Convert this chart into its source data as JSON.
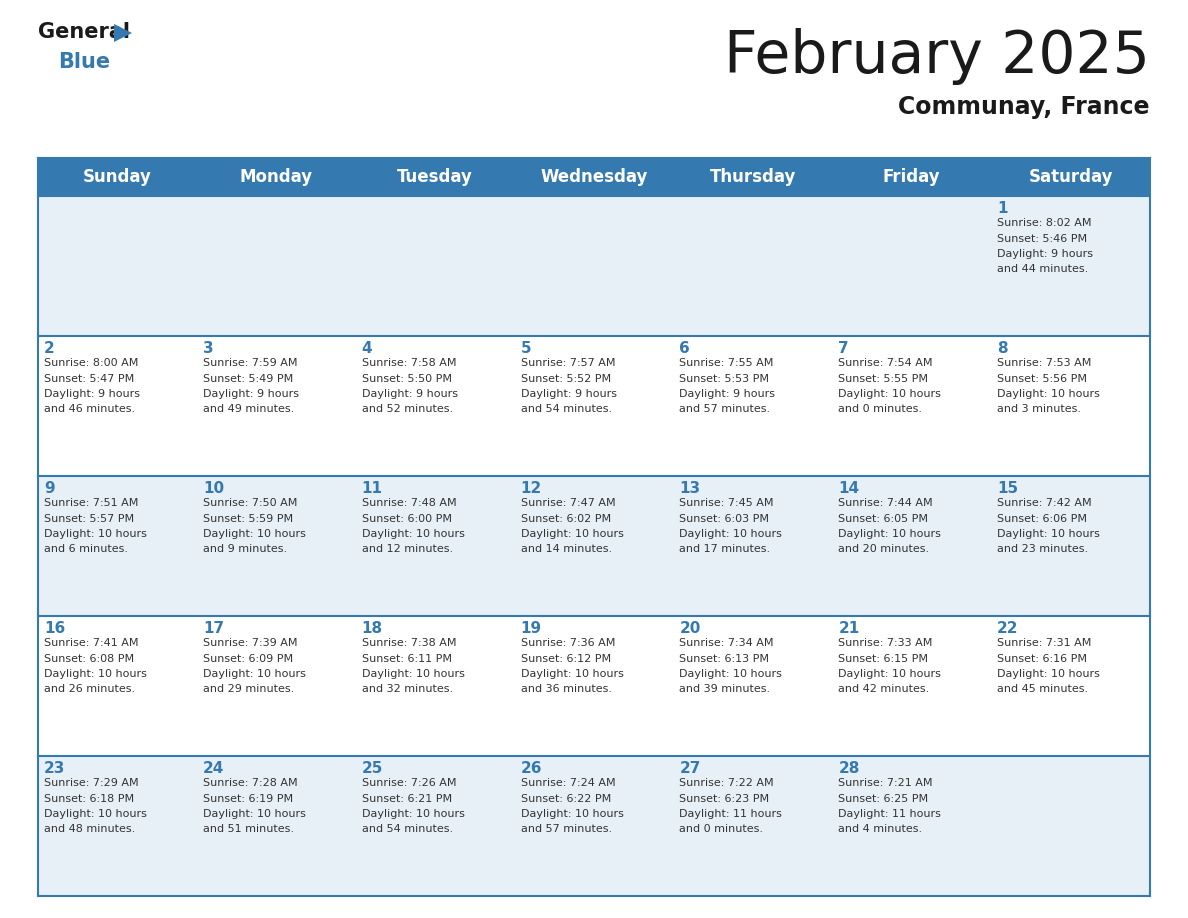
{
  "title": "February 2025",
  "subtitle": "Communay, France",
  "header_color": "#3479b0",
  "header_text_color": "#ffffff",
  "background_color": "#ffffff",
  "cell_bg_light": "#e8f0f7",
  "cell_bg_white": "#ffffff",
  "days_of_week": [
    "Sunday",
    "Monday",
    "Tuesday",
    "Wednesday",
    "Thursday",
    "Friday",
    "Saturday"
  ],
  "title_color": "#1a1a1a",
  "subtitle_color": "#1a1a1a",
  "day_num_color": "#3479b0",
  "cell_text_color": "#333333",
  "grid_color": "#3479b0",
  "weeks": [
    [
      {
        "day": null,
        "sunrise": null,
        "sunset": null,
        "daylight": null
      },
      {
        "day": null,
        "sunrise": null,
        "sunset": null,
        "daylight": null
      },
      {
        "day": null,
        "sunrise": null,
        "sunset": null,
        "daylight": null
      },
      {
        "day": null,
        "sunrise": null,
        "sunset": null,
        "daylight": null
      },
      {
        "day": null,
        "sunrise": null,
        "sunset": null,
        "daylight": null
      },
      {
        "day": null,
        "sunrise": null,
        "sunset": null,
        "daylight": null
      },
      {
        "day": 1,
        "sunrise": "8:02 AM",
        "sunset": "5:46 PM",
        "daylight": "9 hours and 44 minutes."
      }
    ],
    [
      {
        "day": 2,
        "sunrise": "8:00 AM",
        "sunset": "5:47 PM",
        "daylight": "9 hours and 46 minutes."
      },
      {
        "day": 3,
        "sunrise": "7:59 AM",
        "sunset": "5:49 PM",
        "daylight": "9 hours and 49 minutes."
      },
      {
        "day": 4,
        "sunrise": "7:58 AM",
        "sunset": "5:50 PM",
        "daylight": "9 hours and 52 minutes."
      },
      {
        "day": 5,
        "sunrise": "7:57 AM",
        "sunset": "5:52 PM",
        "daylight": "9 hours and 54 minutes."
      },
      {
        "day": 6,
        "sunrise": "7:55 AM",
        "sunset": "5:53 PM",
        "daylight": "9 hours and 57 minutes."
      },
      {
        "day": 7,
        "sunrise": "7:54 AM",
        "sunset": "5:55 PM",
        "daylight": "10 hours and 0 minutes."
      },
      {
        "day": 8,
        "sunrise": "7:53 AM",
        "sunset": "5:56 PM",
        "daylight": "10 hours and 3 minutes."
      }
    ],
    [
      {
        "day": 9,
        "sunrise": "7:51 AM",
        "sunset": "5:57 PM",
        "daylight": "10 hours and 6 minutes."
      },
      {
        "day": 10,
        "sunrise": "7:50 AM",
        "sunset": "5:59 PM",
        "daylight": "10 hours and 9 minutes."
      },
      {
        "day": 11,
        "sunrise": "7:48 AM",
        "sunset": "6:00 PM",
        "daylight": "10 hours and 12 minutes."
      },
      {
        "day": 12,
        "sunrise": "7:47 AM",
        "sunset": "6:02 PM",
        "daylight": "10 hours and 14 minutes."
      },
      {
        "day": 13,
        "sunrise": "7:45 AM",
        "sunset": "6:03 PM",
        "daylight": "10 hours and 17 minutes."
      },
      {
        "day": 14,
        "sunrise": "7:44 AM",
        "sunset": "6:05 PM",
        "daylight": "10 hours and 20 minutes."
      },
      {
        "day": 15,
        "sunrise": "7:42 AM",
        "sunset": "6:06 PM",
        "daylight": "10 hours and 23 minutes."
      }
    ],
    [
      {
        "day": 16,
        "sunrise": "7:41 AM",
        "sunset": "6:08 PM",
        "daylight": "10 hours and 26 minutes."
      },
      {
        "day": 17,
        "sunrise": "7:39 AM",
        "sunset": "6:09 PM",
        "daylight": "10 hours and 29 minutes."
      },
      {
        "day": 18,
        "sunrise": "7:38 AM",
        "sunset": "6:11 PM",
        "daylight": "10 hours and 32 minutes."
      },
      {
        "day": 19,
        "sunrise": "7:36 AM",
        "sunset": "6:12 PM",
        "daylight": "10 hours and 36 minutes."
      },
      {
        "day": 20,
        "sunrise": "7:34 AM",
        "sunset": "6:13 PM",
        "daylight": "10 hours and 39 minutes."
      },
      {
        "day": 21,
        "sunrise": "7:33 AM",
        "sunset": "6:15 PM",
        "daylight": "10 hours and 42 minutes."
      },
      {
        "day": 22,
        "sunrise": "7:31 AM",
        "sunset": "6:16 PM",
        "daylight": "10 hours and 45 minutes."
      }
    ],
    [
      {
        "day": 23,
        "sunrise": "7:29 AM",
        "sunset": "6:18 PM",
        "daylight": "10 hours and 48 minutes."
      },
      {
        "day": 24,
        "sunrise": "7:28 AM",
        "sunset": "6:19 PM",
        "daylight": "10 hours and 51 minutes."
      },
      {
        "day": 25,
        "sunrise": "7:26 AM",
        "sunset": "6:21 PM",
        "daylight": "10 hours and 54 minutes."
      },
      {
        "day": 26,
        "sunrise": "7:24 AM",
        "sunset": "6:22 PM",
        "daylight": "10 hours and 57 minutes."
      },
      {
        "day": 27,
        "sunrise": "7:22 AM",
        "sunset": "6:23 PM",
        "daylight": "11 hours and 0 minutes."
      },
      {
        "day": 28,
        "sunrise": "7:21 AM",
        "sunset": "6:25 PM",
        "daylight": "11 hours and 4 minutes."
      },
      {
        "day": null,
        "sunrise": null,
        "sunset": null,
        "daylight": null
      }
    ]
  ]
}
